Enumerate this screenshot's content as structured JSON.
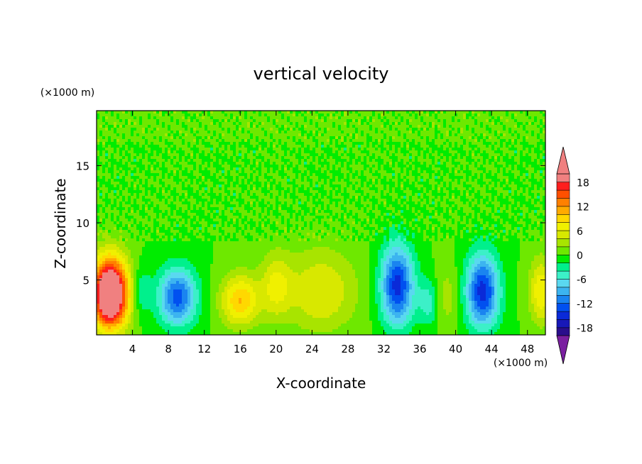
{
  "chart_data": {
    "type": "heatmap",
    "title": "vertical velocity",
    "xlabel": "X-coordinate",
    "ylabel": "Z-coordinate",
    "x_unit": "(×1000 m)",
    "y_unit": "(×1000 m)",
    "xlim": [
      0,
      50
    ],
    "ylim": [
      0.2,
      19.8
    ],
    "x_ticks": [
      4,
      8,
      12,
      16,
      20,
      24,
      28,
      32,
      36,
      40,
      44,
      48
    ],
    "y_ticks": [
      5,
      10,
      15
    ],
    "colorbar": {
      "levels": [
        -20,
        -18,
        -16,
        -14,
        -12,
        -10,
        -8,
        -6,
        -4,
        -2,
        0,
        2,
        4,
        6,
        8,
        10,
        12,
        14,
        16,
        18,
        20
      ],
      "tick_labels": [
        18,
        12,
        6,
        0,
        -6,
        -12,
        -18
      ],
      "colors": [
        "#7a1fa0",
        "#2a0e8c",
        "#1818b8",
        "#0a2ad8",
        "#0050f0",
        "#1a84f0",
        "#3cb4f0",
        "#5ad8f0",
        "#3cf0c8",
        "#00f08c",
        "#00ec00",
        "#6ee800",
        "#a8e400",
        "#d8e800",
        "#f0f000",
        "#ffd800",
        "#ffaa00",
        "#ff8000",
        "#ff5000",
        "#ff1e1e",
        "#f08080"
      ],
      "extend": "both"
    },
    "features": [
      {
        "x": 1.5,
        "z": 3.8,
        "w": 28,
        "sx": 1.4,
        "sz": 2.2
      },
      {
        "x": 9.0,
        "z": 3.5,
        "w": -13,
        "sx": 1.5,
        "sz": 1.8
      },
      {
        "x": 16.0,
        "z": 3.2,
        "w": 10,
        "sx": 1.5,
        "sz": 1.6
      },
      {
        "x": 20.0,
        "z": 4.5,
        "w": 6,
        "sx": 1.2,
        "sz": 2.0
      },
      {
        "x": 25.0,
        "z": 4.0,
        "w": 6,
        "sx": 2.8,
        "sz": 2.6
      },
      {
        "x": 33.5,
        "z": 4.5,
        "w": -15,
        "sx": 1.3,
        "sz": 2.5
      },
      {
        "x": 39.0,
        "z": 3.5,
        "w": 3,
        "sx": 1.0,
        "sz": 2.0
      },
      {
        "x": 43.0,
        "z": 4.0,
        "w": -15,
        "sx": 1.3,
        "sz": 2.3
      },
      {
        "x": 49.5,
        "z": 4.0,
        "w": 8,
        "sx": 0.9,
        "sz": 2.0
      },
      {
        "x": 5.0,
        "z": 4.0,
        "w": -4,
        "sx": 0.7,
        "sz": 1.5
      },
      {
        "x": 37.0,
        "z": 3.0,
        "w": -5,
        "sx": 0.8,
        "sz": 1.5
      }
    ]
  }
}
